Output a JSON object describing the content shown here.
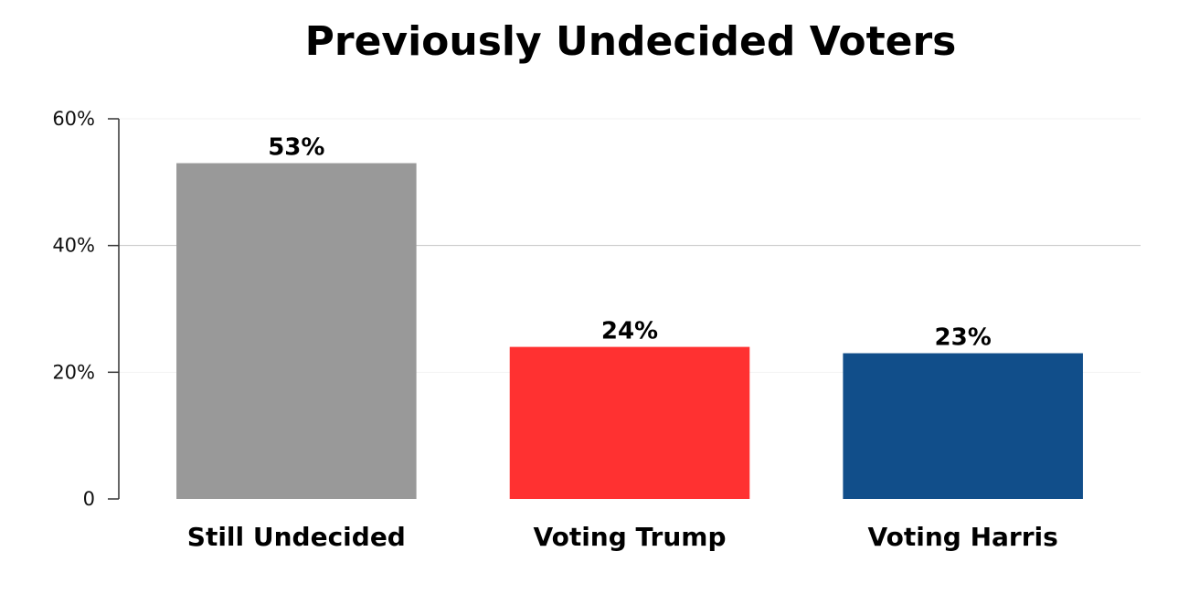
{
  "chart_data": {
    "type": "bar",
    "title": "Previously Undecided Voters",
    "xlabel": "",
    "ylabel": "",
    "categories": [
      "Still Undecided",
      "Voting Trump",
      "Voting Harris"
    ],
    "values": [
      53,
      24,
      23
    ],
    "value_labels": [
      "53%",
      "24%",
      "23%"
    ],
    "colors": [
      "#999999",
      "#ff3131",
      "#114e8a"
    ],
    "ylim": [
      0,
      60
    ],
    "yticks": [
      0,
      20,
      40,
      60
    ],
    "ytick_labels": [
      "0",
      "20%",
      "40%",
      "60%"
    ],
    "grid": true,
    "legend": "none"
  }
}
